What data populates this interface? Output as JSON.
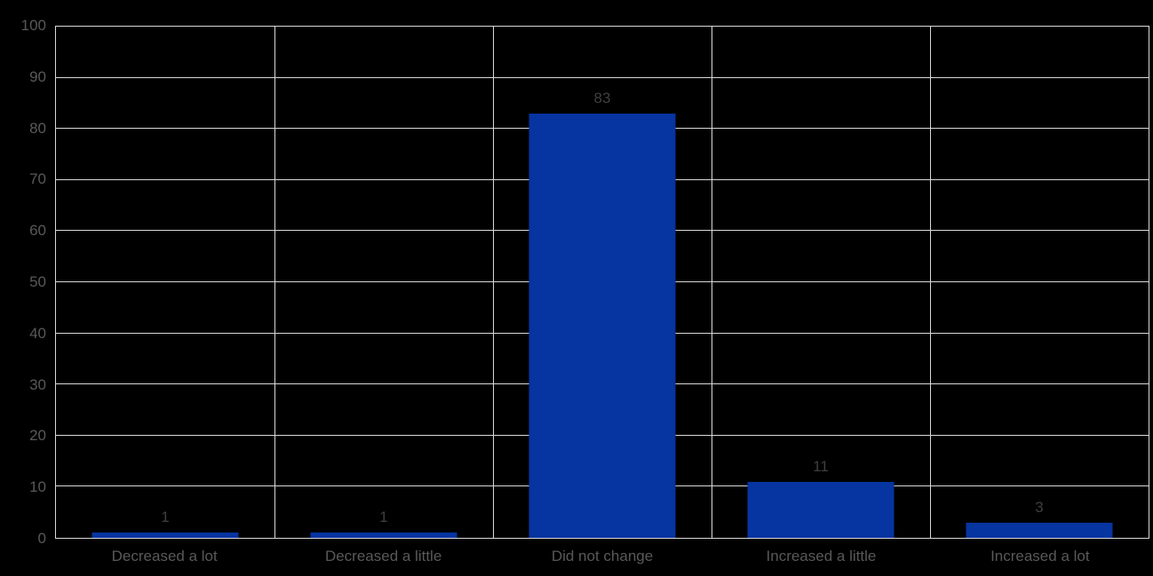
{
  "chart_data": {
    "type": "bar",
    "title": "",
    "xlabel": "",
    "ylabel": "",
    "categories": [
      "Decreased a lot",
      "Decreased a little",
      "Did not change",
      "Increased a little",
      "Increased a lot"
    ],
    "values": [
      1,
      1,
      83,
      11,
      3
    ],
    "data_labels": [
      "1",
      "1",
      "83",
      "11",
      "3"
    ],
    "ylim": [
      0,
      100
    ],
    "ytick_step": 10,
    "yticks": [
      0,
      10,
      20,
      30,
      40,
      50,
      60,
      70,
      80,
      90,
      100
    ],
    "grid": "horizontal and vertical major gridlines, plot area fully boxed",
    "legend": "none",
    "colors": {
      "background": "#000000",
      "bar": "#0634A1",
      "gridline": "#D9D9D9",
      "axis_tick_label": "#595959",
      "data_label": "#3F3F3F"
    }
  }
}
